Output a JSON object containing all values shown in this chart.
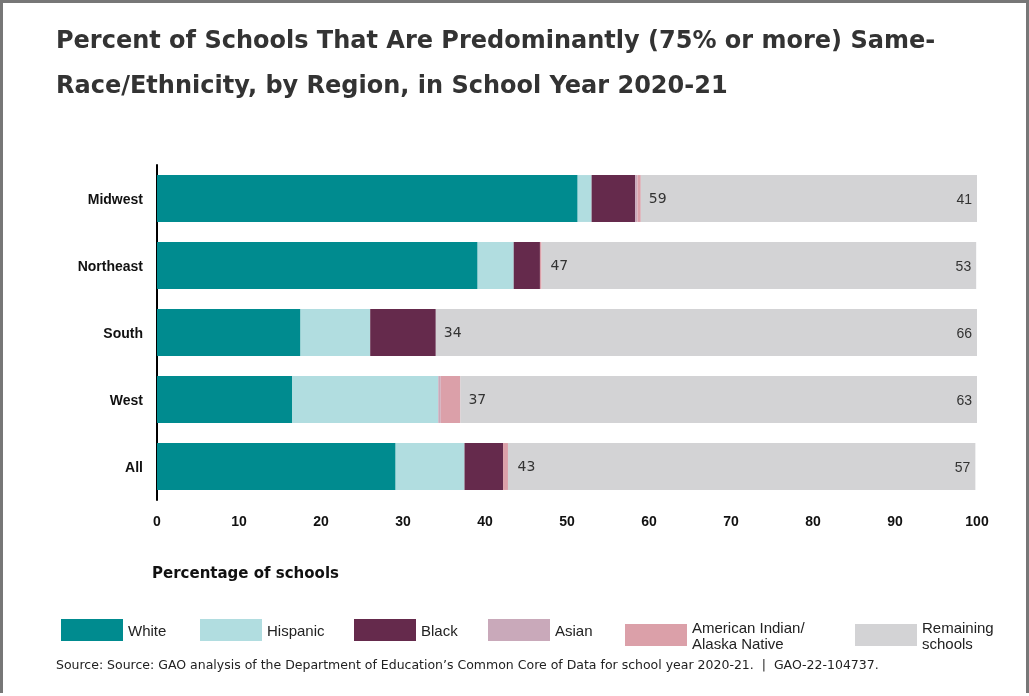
{
  "chart_data": {
    "type": "bar",
    "orientation": "horizontal",
    "stacked": true,
    "title": "Percent of Schools That Are Predominantly (75% or more) Same-Race/Ethnicity, by Region, in School Year 2020-21",
    "xlabel": "Percentage of schools",
    "categories": [
      "Midwest",
      "Northeast",
      "South",
      "West",
      "All"
    ],
    "xlim": [
      0,
      100
    ],
    "xticks": [
      0,
      10,
      20,
      30,
      40,
      50,
      60,
      70,
      80,
      90,
      100
    ],
    "grid": false,
    "legend": "bottom",
    "series": [
      {
        "name": "White",
        "color": "#008b8f",
        "values": [
          51.3,
          39.1,
          17.5,
          16.5,
          29.1
        ]
      },
      {
        "name": "Hispanic",
        "color": "#b1dde0",
        "values": [
          1.7,
          4.4,
          8.5,
          17.8,
          8.4
        ]
      },
      {
        "name": "Black",
        "color": "#652a4c",
        "values": [
          5.3,
          3.2,
          8.0,
          0,
          4.7
        ]
      },
      {
        "name": "Asian",
        "color": "#c9a9ba",
        "values": [
          0.3,
          null,
          0,
          0.3,
          null
        ]
      },
      {
        "name": "American Indian/Alaska Native",
        "color": "#dba0a9",
        "values": [
          0.4,
          0.2,
          0,
          2.4,
          0.6
        ]
      },
      {
        "name": "Remaining schools",
        "color": "#d3d3d5",
        "values": [
          41,
          53,
          66,
          63,
          57
        ],
        "value_labels": [
          "41",
          "53",
          "66",
          "63",
          "57"
        ]
      }
    ],
    "annotations": [
      {
        "text": "59",
        "x": 59,
        "y": "Midwest"
      },
      {
        "text": "47",
        "x": 47,
        "y": "Northeast"
      },
      {
        "text": "34",
        "x": 34,
        "y": "South"
      },
      {
        "text": "37",
        "x": 37,
        "y": "West"
      },
      {
        "text": "43",
        "x": 43,
        "y": "All"
      },
      "Source: Source: GAO analysis of the Department of Education’s Common Core of Data for school year 2020-21.  |  GAO-22-104737."
    ]
  }
}
